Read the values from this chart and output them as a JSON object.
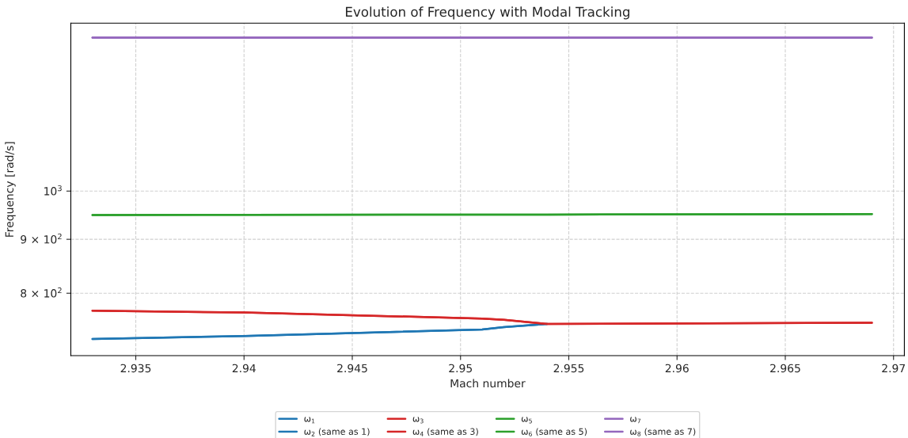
{
  "chart_data": {
    "type": "line",
    "title": "Evolution of Frequency with Modal Tracking",
    "xlabel": "Mach number",
    "ylabel": "Frequency [rad/s]",
    "x": [
      2.933,
      2.94,
      2.951,
      2.952,
      2.954,
      2.969
    ],
    "series": [
      {
        "name": "ω$_{1}$",
        "color": "#1f77b4",
        "values": [
          724,
          728.5,
          739,
          743,
          748,
          null
        ]
      },
      {
        "name": "ω$_{2}$ (same as 1)",
        "color": "#1f77b4",
        "values": [
          724,
          728.5,
          739,
          743,
          748,
          null
        ]
      },
      {
        "name": "ω$_{3}$",
        "color": "#d62728",
        "values": [
          770,
          767,
          757,
          755,
          748,
          750
        ]
      },
      {
        "name": "ω$_{4}$ (same as 3)",
        "color": "#d62728",
        "values": [
          770,
          767,
          757,
          755,
          748,
          750
        ]
      },
      {
        "name": "ω$_{5}$",
        "color": "#2ca02c",
        "values": [
          949,
          949.5,
          950,
          950,
          950,
          951
        ]
      },
      {
        "name": "ω$_{6}$ (same as 5)",
        "color": "#2ca02c",
        "values": [
          949,
          949.5,
          950,
          950,
          950,
          951
        ]
      },
      {
        "name": "ω$_{7}$",
        "color": "#9467bd",
        "values": [
          1398,
          1398,
          1398,
          1398,
          1398,
          1398
        ]
      },
      {
        "name": "ω$_{8}$ (same as 7)",
        "color": "#9467bd",
        "values": [
          1398,
          1398,
          1398,
          1398,
          1398,
          1398
        ]
      }
    ],
    "log": "y",
    "xlim": [
      2.932,
      2.9705
    ],
    "ylim": [
      698,
      1443
    ],
    "xticks": [
      2.935,
      2.94,
      2.945,
      2.95,
      2.955,
      2.96,
      2.965,
      2.97
    ],
    "yticks": [
      {
        "value": 800,
        "label": "8 × 10$^{2}$"
      },
      {
        "value": 900,
        "label": "9 × 10$^{2}$"
      },
      {
        "value": 1000,
        "label": "10$^{3}$"
      }
    ],
    "grid": true,
    "legend": "bottom",
    "line_style": "solid",
    "marker": "none"
  }
}
